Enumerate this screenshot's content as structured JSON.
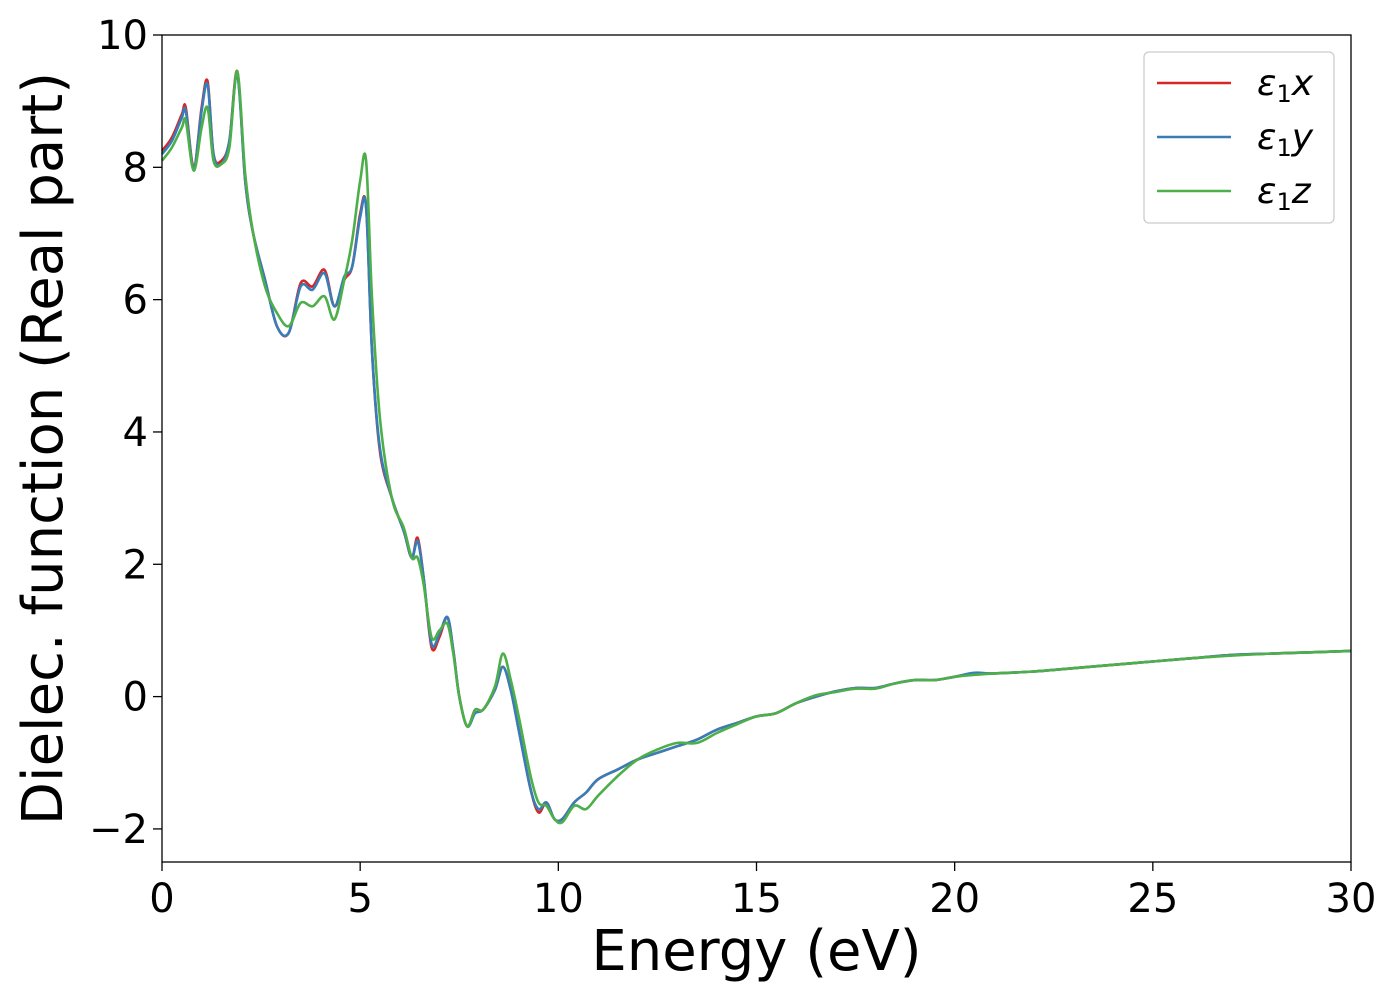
{
  "chart_data": {
    "type": "line",
    "xlabel": "Energy (eV)",
    "ylabel": "Dielec. function (Real part)",
    "xlim": [
      0,
      30
    ],
    "ylim": [
      -2.5,
      10
    ],
    "xticks": [
      {
        "value": 0,
        "label": "0"
      },
      {
        "value": 5,
        "label": "5"
      },
      {
        "value": 10,
        "label": "10"
      },
      {
        "value": 15,
        "label": "15"
      },
      {
        "value": 20,
        "label": "20"
      },
      {
        "value": 25,
        "label": "25"
      },
      {
        "value": 30,
        "label": "30"
      }
    ],
    "yticks": [
      {
        "value": -2,
        "label": "−2"
      },
      {
        "value": 0,
        "label": "0"
      },
      {
        "value": 2,
        "label": "2"
      },
      {
        "value": 4,
        "label": "4"
      },
      {
        "value": 6,
        "label": "6"
      },
      {
        "value": 8,
        "label": "8"
      },
      {
        "value": 10,
        "label": "10"
      }
    ],
    "grid": false,
    "legend_position": "top-right",
    "series": [
      {
        "name": "ε1x",
        "symbol": "ε",
        "subscript": "1",
        "suffix": "x",
        "color": "#d62728",
        "x": [
          0,
          0.25,
          0.5,
          0.6,
          0.8,
          1.0,
          1.15,
          1.3,
          1.5,
          1.7,
          1.9,
          2.1,
          2.3,
          2.6,
          2.9,
          3.2,
          3.5,
          3.8,
          4.1,
          4.35,
          4.6,
          4.8,
          5.0,
          5.15,
          5.3,
          5.5,
          5.8,
          6.1,
          6.3,
          6.45,
          6.6,
          6.8,
          7.0,
          7.2,
          7.35,
          7.5,
          7.7,
          7.9,
          8.1,
          8.4,
          8.6,
          8.8,
          9.0,
          9.3,
          9.5,
          9.7,
          9.9,
          10.1,
          10.4,
          10.7,
          11.0,
          11.5,
          12.0,
          12.5,
          13.0,
          13.5,
          14.0,
          14.5,
          15.0,
          15.5,
          16.0,
          16.5,
          17.0,
          17.5,
          18.0,
          18.5,
          19.0,
          19.5,
          20.0,
          20.5,
          21.0,
          22.0,
          23.0,
          24.0,
          25.0,
          26.0,
          27.0,
          28.0,
          29.0,
          30.0
        ],
        "y": [
          8.25,
          8.45,
          8.8,
          8.9,
          8.0,
          8.9,
          9.3,
          8.2,
          8.1,
          8.4,
          9.45,
          7.8,
          7.0,
          6.3,
          5.6,
          5.5,
          6.25,
          6.2,
          6.45,
          5.9,
          6.3,
          6.5,
          7.3,
          7.4,
          5.2,
          3.7,
          3.0,
          2.5,
          2.1,
          2.4,
          1.8,
          0.75,
          0.9,
          1.2,
          0.7,
          0.0,
          -0.45,
          -0.2,
          -0.2,
          0.1,
          0.45,
          0.1,
          -0.5,
          -1.4,
          -1.75,
          -1.6,
          -1.85,
          -1.85,
          -1.6,
          -1.45,
          -1.25,
          -1.1,
          -0.95,
          -0.85,
          -0.75,
          -0.65,
          -0.5,
          -0.4,
          -0.3,
          -0.25,
          -0.1,
          0.0,
          0.08,
          0.13,
          0.13,
          0.2,
          0.25,
          0.25,
          0.3,
          0.35,
          0.35,
          0.38,
          0.43,
          0.48,
          0.53,
          0.58,
          0.63,
          0.65,
          0.67,
          0.69
        ]
      },
      {
        "name": "ε1y",
        "symbol": "ε",
        "subscript": "1",
        "suffix": "y",
        "color": "#377eb8",
        "x": [
          0,
          0.25,
          0.5,
          0.6,
          0.8,
          1.0,
          1.15,
          1.3,
          1.5,
          1.7,
          1.9,
          2.1,
          2.3,
          2.6,
          2.9,
          3.2,
          3.5,
          3.8,
          4.1,
          4.35,
          4.6,
          4.8,
          5.0,
          5.15,
          5.3,
          5.5,
          5.8,
          6.1,
          6.3,
          6.45,
          6.6,
          6.8,
          7.0,
          7.2,
          7.35,
          7.5,
          7.7,
          7.9,
          8.1,
          8.4,
          8.6,
          8.8,
          9.0,
          9.3,
          9.5,
          9.7,
          9.9,
          10.1,
          10.4,
          10.7,
          11.0,
          11.5,
          12.0,
          12.5,
          13.0,
          13.5,
          14.0,
          14.5,
          15.0,
          15.5,
          16.0,
          16.5,
          17.0,
          17.5,
          18.0,
          18.5,
          19.0,
          19.5,
          20.0,
          20.5,
          21.0,
          22.0,
          23.0,
          24.0,
          25.0,
          26.0,
          27.0,
          28.0,
          29.0,
          30.0
        ],
        "y": [
          8.2,
          8.4,
          8.75,
          8.85,
          8.0,
          8.85,
          9.25,
          8.2,
          8.05,
          8.4,
          9.4,
          7.8,
          7.0,
          6.3,
          5.6,
          5.5,
          6.2,
          6.15,
          6.4,
          5.9,
          6.35,
          6.5,
          7.25,
          7.4,
          5.2,
          3.75,
          3.0,
          2.5,
          2.1,
          2.35,
          1.8,
          0.8,
          0.95,
          1.2,
          0.7,
          0.0,
          -0.45,
          -0.25,
          -0.2,
          0.1,
          0.45,
          0.1,
          -0.5,
          -1.4,
          -1.7,
          -1.6,
          -1.85,
          -1.85,
          -1.6,
          -1.45,
          -1.25,
          -1.1,
          -0.95,
          -0.85,
          -0.75,
          -0.65,
          -0.5,
          -0.4,
          -0.3,
          -0.25,
          -0.1,
          0.0,
          0.08,
          0.13,
          0.13,
          0.2,
          0.25,
          0.25,
          0.3,
          0.36,
          0.35,
          0.38,
          0.43,
          0.48,
          0.53,
          0.58,
          0.63,
          0.65,
          0.67,
          0.69
        ]
      },
      {
        "name": "ε1z",
        "symbol": "ε",
        "subscript": "1",
        "suffix": "z",
        "color": "#4daf4a",
        "x": [
          0,
          0.25,
          0.5,
          0.6,
          0.8,
          1.0,
          1.15,
          1.3,
          1.5,
          1.7,
          1.9,
          2.1,
          2.3,
          2.6,
          2.9,
          3.2,
          3.5,
          3.8,
          4.1,
          4.35,
          4.6,
          4.8,
          5.0,
          5.15,
          5.3,
          5.5,
          5.8,
          6.1,
          6.3,
          6.45,
          6.6,
          6.8,
          7.0,
          7.2,
          7.35,
          7.5,
          7.7,
          7.9,
          8.1,
          8.4,
          8.6,
          8.8,
          9.0,
          9.3,
          9.5,
          9.7,
          9.9,
          10.1,
          10.4,
          10.7,
          11.0,
          11.5,
          12.0,
          12.5,
          13.0,
          13.5,
          14.0,
          14.5,
          15.0,
          15.5,
          16.0,
          16.5,
          17.0,
          17.5,
          18.0,
          18.5,
          19.0,
          19.5,
          20.0,
          20.5,
          21.0,
          22.0,
          23.0,
          24.0,
          25.0,
          26.0,
          27.0,
          28.0,
          29.0,
          30.0
        ],
        "y": [
          8.1,
          8.3,
          8.6,
          8.7,
          7.95,
          8.6,
          8.9,
          8.1,
          8.05,
          8.3,
          9.45,
          7.9,
          7.0,
          6.2,
          5.8,
          5.6,
          5.95,
          5.9,
          6.05,
          5.7,
          6.3,
          6.9,
          7.8,
          8.1,
          6.0,
          4.2,
          3.0,
          2.55,
          2.1,
          2.1,
          1.7,
          0.9,
          1.0,
          1.1,
          0.65,
          0.0,
          -0.45,
          -0.2,
          -0.2,
          0.15,
          0.65,
          0.25,
          -0.3,
          -1.2,
          -1.6,
          -1.65,
          -1.85,
          -1.9,
          -1.65,
          -1.7,
          -1.5,
          -1.2,
          -0.95,
          -0.8,
          -0.7,
          -0.7,
          -0.55,
          -0.42,
          -0.3,
          -0.25,
          -0.1,
          0.02,
          0.07,
          0.12,
          0.12,
          0.2,
          0.25,
          0.25,
          0.3,
          0.33,
          0.35,
          0.38,
          0.43,
          0.48,
          0.53,
          0.58,
          0.62,
          0.65,
          0.67,
          0.69
        ]
      }
    ]
  }
}
